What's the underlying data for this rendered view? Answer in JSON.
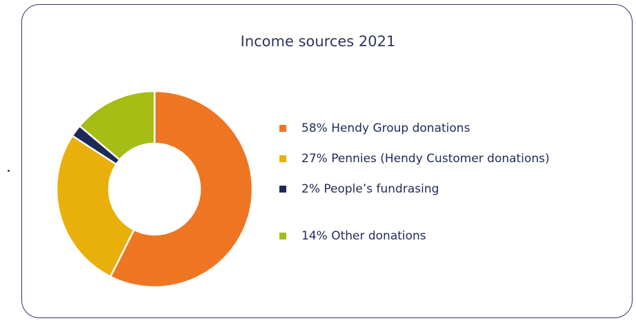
{
  "chart_data": {
    "type": "pie",
    "title": "Income sources 2021",
    "slices": [
      {
        "label": "Hendy Group donations",
        "value": 58,
        "display": "58% Hendy Group donations",
        "color": "#ee7623"
      },
      {
        "label": "Pennies (Hendy Customer donations)",
        "value": 27,
        "display": "27% Pennies (Hendy Customer donations)",
        "color": "#e9b00c"
      },
      {
        "label": "People’s fundrasing",
        "value": 2,
        "display": "2% People’s fundrasing",
        "color": "#1d2a58"
      },
      {
        "label": "Other donations",
        "value": 14,
        "display": "14% Other donations",
        "color": "#a5bd14"
      }
    ],
    "donut": true,
    "legend": "right"
  }
}
